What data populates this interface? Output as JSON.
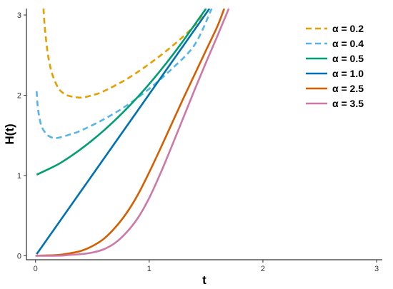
{
  "chart_data": {
    "type": "line",
    "title": "",
    "xlabel": "t",
    "ylabel": "H(t)",
    "xlim": [
      -0.08,
      3.05
    ],
    "ylim": [
      -0.05,
      3.08
    ],
    "xticks": [
      0,
      1,
      2,
      3
    ],
    "yticks": [
      0,
      1,
      2,
      3
    ],
    "xtick_labels": [
      "0",
      "1",
      "2",
      "3"
    ],
    "ytick_labels": [
      "0",
      "1",
      "2",
      "3"
    ],
    "grid": false,
    "legend_position": "top-right",
    "series": [
      {
        "name": "α = 0.2",
        "color": "#E69F00",
        "dash": "dashed",
        "x": [
          0.07,
          0.08,
          0.1,
          0.12,
          0.15,
          0.2,
          0.25,
          0.3,
          0.4,
          0.5,
          0.6,
          0.8,
          1.0,
          1.2,
          1.4,
          1.5
        ],
        "y": [
          3.08,
          2.87,
          2.6,
          2.42,
          2.25,
          2.09,
          2.02,
          1.99,
          1.97,
          2.0,
          2.05,
          2.2,
          2.39,
          2.61,
          2.87,
          3.08
        ]
      },
      {
        "name": "α = 0.4",
        "color": "#56B4E9",
        "dash": "dashed",
        "x": [
          0.01,
          0.02,
          0.04,
          0.06,
          0.1,
          0.15,
          0.2,
          0.3,
          0.4,
          0.6,
          0.8,
          1.0,
          1.2,
          1.4,
          1.55
        ],
        "y": [
          2.05,
          1.85,
          1.68,
          1.59,
          1.51,
          1.47,
          1.47,
          1.51,
          1.56,
          1.7,
          1.87,
          2.08,
          2.33,
          2.63,
          3.08
        ]
      },
      {
        "name": "α = 0.5",
        "color": "#009E73",
        "dash": "solid",
        "x": [
          0.01,
          0.1,
          0.2,
          0.3,
          0.4,
          0.5,
          0.6,
          0.7,
          0.8,
          0.9,
          1.0,
          1.1,
          1.2,
          1.3,
          1.4,
          1.5
        ],
        "y": [
          1.01,
          1.07,
          1.14,
          1.23,
          1.33,
          1.44,
          1.56,
          1.69,
          1.83,
          1.98,
          2.14,
          2.31,
          2.49,
          2.68,
          2.88,
          3.08
        ]
      },
      {
        "name": "α = 1.0",
        "color": "#0072B2",
        "dash": "solid",
        "x": [
          0.01,
          1.53
        ],
        "y": [
          0.02,
          3.08
        ]
      },
      {
        "name": "α = 2.5",
        "color": "#D55E00",
        "dash": "solid",
        "x": [
          0.0,
          0.2,
          0.3,
          0.4,
          0.5,
          0.6,
          0.7,
          0.8,
          0.9,
          1.0,
          1.1,
          1.2,
          1.3,
          1.4,
          1.5,
          1.6,
          1.66
        ],
        "y": [
          0.0,
          0.01,
          0.03,
          0.06,
          0.12,
          0.21,
          0.35,
          0.53,
          0.76,
          1.04,
          1.34,
          1.65,
          1.96,
          2.26,
          2.56,
          2.86,
          3.08
        ]
      },
      {
        "name": "α = 3.5",
        "color": "#CC79A7",
        "dash": "solid",
        "x": [
          0.0,
          0.2,
          0.3,
          0.4,
          0.5,
          0.6,
          0.7,
          0.8,
          0.9,
          1.0,
          1.1,
          1.2,
          1.3,
          1.4,
          1.5,
          1.6,
          1.7
        ],
        "y": [
          0.0,
          0.0,
          0.01,
          0.02,
          0.04,
          0.08,
          0.16,
          0.29,
          0.47,
          0.72,
          1.03,
          1.37,
          1.72,
          2.07,
          2.41,
          2.74,
          3.08
        ]
      }
    ]
  }
}
